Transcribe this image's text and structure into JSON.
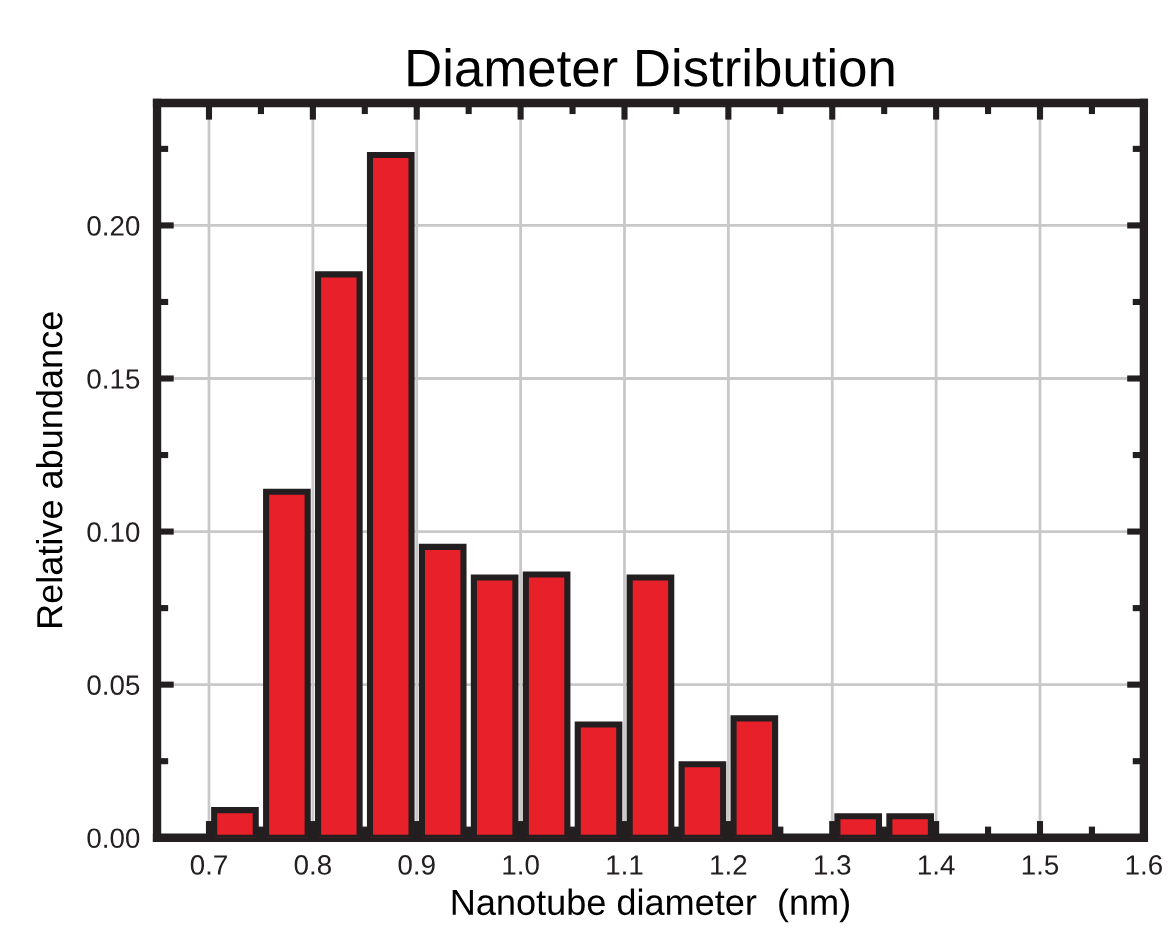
{
  "chart_data": {
    "type": "histogram",
    "title": "Diameter Distribution",
    "xlabel": "Nanotube diameter  (nm)",
    "ylabel": "Relative abundance",
    "bins": [
      0.7,
      0.75,
      0.8,
      0.85,
      0.9,
      0.95,
      1.0,
      1.05,
      1.1,
      1.15,
      1.2,
      1.25,
      1.3,
      1.35,
      1.4
    ],
    "values": [
      0.009,
      0.113,
      0.184,
      0.223,
      0.095,
      0.085,
      0.086,
      0.037,
      0.085,
      0.024,
      0.039,
      0,
      0.007,
      0.007
    ],
    "color": "#e8202a",
    "xlim": [
      0.65,
      1.6
    ],
    "xticks": [
      0.7,
      0.8,
      0.9,
      {
        "value": 1.0,
        "label": "1.0"
      },
      1.1,
      1.2,
      1.3,
      1.4,
      1.5,
      1.6
    ],
    "ylim": [
      0,
      0.24
    ],
    "yticks": [
      {
        "value": 0,
        "label": "0.00"
      },
      {
        "value": 0.05,
        "label": "0.05"
      },
      {
        "value": 0.1,
        "label": "0.10"
      },
      {
        "value": 0.15,
        "label": "0.15"
      },
      {
        "value": 0.2,
        "label": "0.20"
      }
    ],
    "grid": true
  }
}
